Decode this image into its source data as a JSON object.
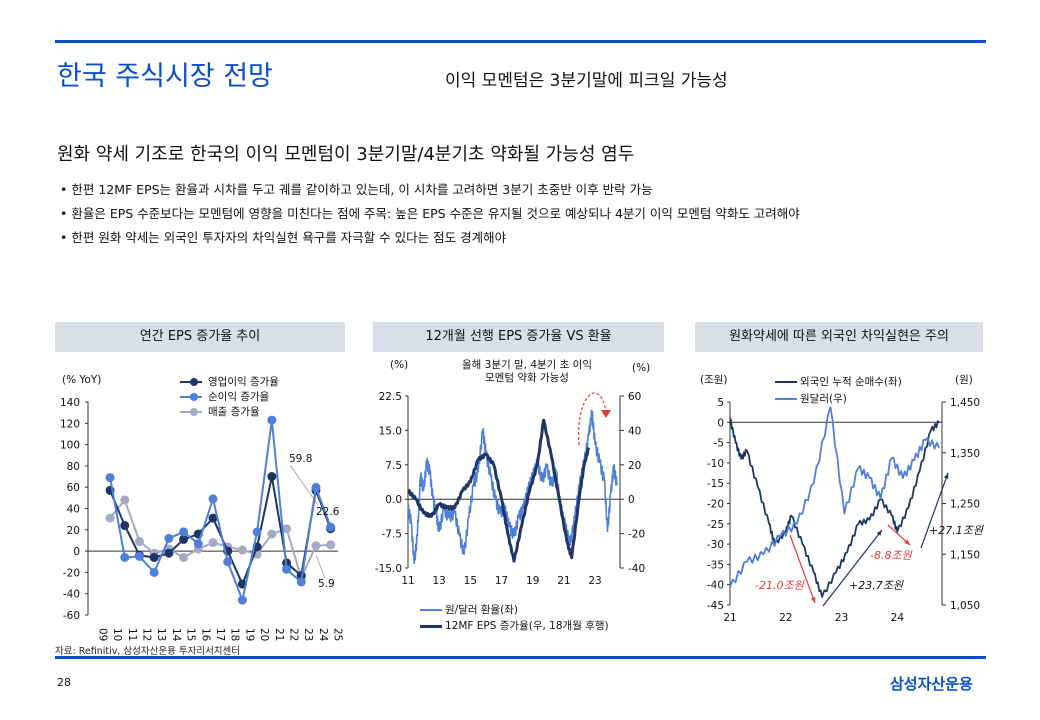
{
  "header": {
    "title": "한국 주식시장 전망",
    "subtitle": "이익 모멘텀은 3분기말에 피크일 가능성"
  },
  "headline": "원화 약세 기조로 한국의 이익 모멘텀이 3분기말/4분기초 약화될 가능성 염두",
  "bullets": [
    "한편 12MF EPS는 환율과 시차를 두고 궤를 같이하고 있는데, 이 시차를 고려하면 3분기 초중반 이후 반락 가능",
    "환율은 EPS 수준보다는 모멘텀에 영향을 미친다는 점에 주목: 높은 EPS 수준은 유지될 것으로 예상되나 4분기 이익 모멘텀 약화도 고려해야",
    "한편 원화 약세는 외국인 투자자의 차익실현 욕구를 자극할 수 있다는 점도 경계해야"
  ],
  "source": "자료: Refinitiv, 삼성자산운용 투자리서치센터",
  "footer": {
    "page": "28",
    "logo": "삼성자산운용"
  },
  "colors": {
    "accent": "#0a4fc9",
    "navy": "#1f3566",
    "blue": "#4f7fd8",
    "gray": "#a4a9c4",
    "red": "#e83a3a"
  },
  "chart_data": [
    {
      "type": "line",
      "title": "연간 EPS 증가율 추이",
      "ylabel": "(% YoY)",
      "ylim": [
        -60,
        140
      ],
      "yticks": [
        140,
        120,
        100,
        80,
        60,
        40,
        20,
        0,
        -20,
        -40,
        -60
      ],
      "categories": [
        "09",
        "10",
        "11",
        "12",
        "13",
        "14",
        "15",
        "16",
        "17",
        "18",
        "19",
        "20",
        "21",
        "22",
        "23",
        "24",
        "25"
      ],
      "series": [
        {
          "name": "영업이익 증가율",
          "values": [
            null,
            57,
            24,
            -4,
            -6,
            -2,
            11,
            16,
            31,
            0,
            -31,
            4,
            70,
            -11,
            -23,
            57,
            21
          ]
        },
        {
          "name": "순이익 증가율",
          "values": [
            null,
            69,
            -6,
            -5,
            -20,
            12,
            18,
            7,
            49,
            -10,
            -46,
            18,
            123,
            -17,
            -29,
            59.8,
            22.6
          ]
        },
        {
          "name": "매출 증가율",
          "values": [
            null,
            31,
            48,
            9,
            -2,
            2,
            -6,
            2,
            8,
            4,
            1,
            -3,
            16,
            21,
            -25,
            5,
            5.9
          ]
        }
      ],
      "labels": [
        "59.8",
        "22.6",
        "5.9"
      ]
    },
    {
      "type": "line",
      "title": "12개월 선행 EPS 증가율 VS 환율",
      "ylabel_left": "(%)",
      "ylabel_right": "(%)",
      "annotation": "올해 3분기 말, 4분기 초 이익 모멘텀 약화 가능성",
      "ylim_left": [
        -15,
        22.5
      ],
      "yticks_left": [
        "22.5",
        "15.0",
        "7.5",
        "0.0",
        "-7.5",
        "-15.0"
      ],
      "ylim_right": [
        -40,
        60
      ],
      "yticks_right": [
        "60",
        "40",
        "20",
        "0",
        "-20",
        "-40"
      ],
      "xlim": [
        2011,
        2024.6
      ],
      "xticks": [
        "11",
        "13",
        "15",
        "17",
        "19",
        "21",
        "23"
      ],
      "series": [
        {
          "name": "원/달러 환율(좌)",
          "axis": "left",
          "x": [
            2011,
            2011.2,
            2011.4,
            2011.6,
            2011.8,
            2012,
            2012.2,
            2012.4,
            2012.6,
            2012.8,
            2013,
            2013.3,
            2013.6,
            2014,
            2014.3,
            2014.6,
            2014.9,
            2015.2,
            2015.5,
            2015.8,
            2016,
            2016.3,
            2016.6,
            2016.9,
            2017.2,
            2017.5,
            2017.8,
            2018.1,
            2018.4,
            2018.7,
            2019,
            2019.3,
            2019.6,
            2019.9,
            2020.2,
            2020.5,
            2020.8,
            2021.1,
            2021.4,
            2021.7,
            2022,
            2022.3,
            2022.6,
            2022.8,
            2023,
            2023.3,
            2023.6,
            2023.8,
            2024,
            2024.2,
            2024.4
          ],
          "values": [
            -2,
            -5,
            -14,
            -8,
            5,
            2,
            8,
            6,
            0,
            -3,
            -7,
            -2,
            -4,
            -3,
            -8,
            -12,
            -4,
            3,
            6,
            15,
            10,
            5,
            0,
            -3,
            -2,
            -6,
            -8,
            -4,
            -2,
            2,
            5,
            8,
            4,
            7,
            3,
            6,
            -2,
            -6,
            -10,
            -4,
            3,
            8,
            14,
            19,
            12,
            8,
            4,
            -7,
            1,
            7,
            3
          ]
        },
        {
          "name": "12MF EPS 증가율(우, 18개월 후행)",
          "axis": "right",
          "x": [
            2011,
            2011.5,
            2012,
            2012.5,
            2013,
            2013.5,
            2014,
            2014.5,
            2015,
            2015.5,
            2016,
            2016.5,
            2017,
            2017.4,
            2017.8,
            2018.3,
            2018.8,
            2019.3,
            2019.7,
            2020.2,
            2020.7,
            2021.2,
            2021.5,
            2022,
            2022.3,
            2022.6
          ],
          "values": [
            5,
            0,
            -8,
            -10,
            -3,
            -5,
            -5,
            5,
            10,
            23,
            26,
            20,
            0,
            -20,
            -36,
            -15,
            5,
            20,
            46,
            25,
            0,
            -25,
            -34,
            2,
            20,
            30
          ]
        }
      ]
    },
    {
      "type": "line",
      "title": "원화약세에 따른 외국인 차익실현은 주의",
      "ylabel_left": "(조원)",
      "ylabel_right": "(원)",
      "ylim_left": [
        -45,
        5
      ],
      "yticks_left": [
        "5",
        "0",
        "-5",
        "-10",
        "-15",
        "-20",
        "-25",
        "-30",
        "-35",
        "-40",
        "-45"
      ],
      "ylim_right": [
        1050,
        1450
      ],
      "yticks_right": [
        "1,450",
        "1,350",
        "1,250",
        "1,150",
        "1,050"
      ],
      "xlim": [
        2021,
        2024.8
      ],
      "xticks": [
        "21",
        "22",
        "23",
        "24"
      ],
      "series": [
        {
          "name": "외국인 누적 순매수(좌)",
          "axis": "left",
          "x": [
            2021,
            2021.1,
            2021.2,
            2021.3,
            2021.5,
            2021.7,
            2021.8,
            2022,
            2022.1,
            2022.3,
            2022.5,
            2022.65,
            2022.9,
            2023.1,
            2023.3,
            2023.5,
            2023.7,
            2023.9,
            2024,
            2024.2,
            2024.4,
            2024.6,
            2024.75
          ],
          "values": [
            1,
            -5,
            -9,
            -7,
            -16,
            -25,
            -30,
            -27,
            -23,
            -30,
            -37,
            -43,
            -37,
            -32,
            -25,
            -24,
            -19,
            -23,
            -27,
            -21,
            -12,
            -2,
            0
          ]
        },
        {
          "name": "원달러(우)",
          "axis": "right",
          "x": [
            2021,
            2021.3,
            2021.6,
            2021.9,
            2022.2,
            2022.5,
            2022.8,
            2023.05,
            2023.3,
            2023.5,
            2023.7,
            2023.9,
            2024.1,
            2024.3,
            2024.5,
            2024.75
          ],
          "values": [
            1085,
            1135,
            1150,
            1185,
            1210,
            1290,
            1440,
            1230,
            1320,
            1300,
            1260,
            1340,
            1300,
            1335,
            1375,
            1360
          ]
        }
      ],
      "annotations": [
        "-21.0조원",
        "+23.7조원",
        "-8.8조원",
        "+27.1조원"
      ]
    }
  ]
}
